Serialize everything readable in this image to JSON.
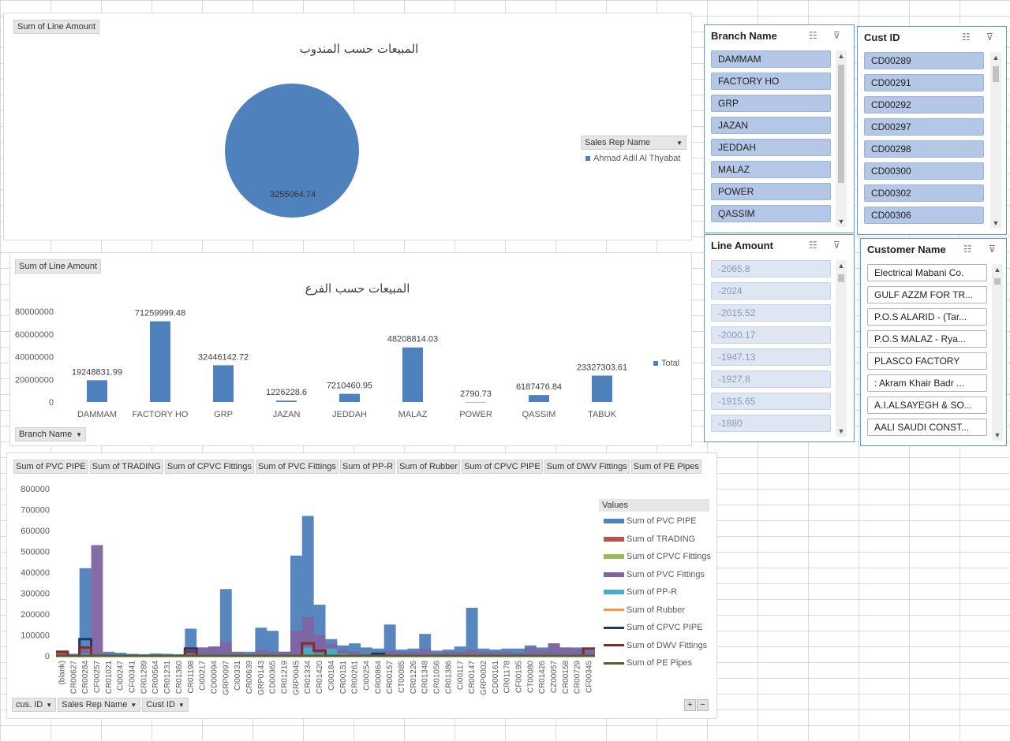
{
  "pie": {
    "field_button": "Sum of Line Amount",
    "title": "المبيعات حسب المندوب",
    "legend_dropdown": "Sales Rep  Name",
    "chart_data": {
      "type": "pie",
      "title": "المبيعات حسب المندوب",
      "slices": [
        {
          "name": "Ahmad Adil Al Thyabat",
          "value": 3255064.74,
          "label": "3255064.74"
        }
      ]
    },
    "color": "#4f81bd"
  },
  "bar": {
    "field_button": "Sum of Line Amount",
    "title": "المبيعات حسب الفرع",
    "axis_dropdown": "Branch Name",
    "legend": "Total",
    "chart_data": {
      "type": "bar",
      "title": "المبيعات حسب الفرع",
      "categories": [
        "DAMMAM",
        "FACTORY HO",
        "GRP",
        "JAZAN",
        "JEDDAH",
        "MALAZ",
        "POWER",
        "QASSIM",
        "TABUK"
      ],
      "series": [
        {
          "name": "Total",
          "values": [
            19248831.99,
            71259999.48,
            32446142.72,
            1226228.6,
            7210460.95,
            48208814.03,
            2790.73,
            6187476.84,
            23327303.61
          ]
        }
      ],
      "data_labels": [
        "19248831.99",
        "71259999.48",
        "32446142.72",
        "1226228.6",
        "7210460.95",
        "48208814.03",
        "2790.73",
        "6187476.84",
        "23327303.61"
      ],
      "y_ticks": [
        "0",
        "20000000",
        "40000000",
        "60000000",
        "80000000"
      ],
      "ylim": [
        0,
        80000000
      ]
    }
  },
  "area": {
    "field_buttons": [
      "Sum of PVC PIPE",
      "Sum of TRADING",
      "Sum of CPVC Fittings",
      "Sum of PVC Fittings",
      "Sum of PP-R",
      "Sum of Rubber",
      "Sum of CPVC PIPE",
      "Sum of DWV Fittings",
      "Sum of PE Pipes"
    ],
    "axis_dropdowns": [
      "cus. ID",
      "Sales Rep  Name",
      "Cust ID"
    ],
    "legend_title": "Values",
    "zoom_buttons": [
      "+",
      "−"
    ],
    "chart_data": {
      "type": "area",
      "y_ticks": [
        "0",
        "100000",
        "200000",
        "300000",
        "400000",
        "500000",
        "600000",
        "700000",
        "800000"
      ],
      "ylim": [
        0,
        800000
      ],
      "x_labels": [
        "(blank)",
        "CR00627",
        "CR00284",
        "CF00257",
        "CR01021",
        "CI00247",
        "CF00341",
        "CR01289",
        "CR00564",
        "CR01231",
        "CR01360",
        "CR01198",
        "CI00217",
        "CD00094",
        "GRP0097",
        "CI00331",
        "CR00639",
        "GRP0143",
        "CD00365",
        "CR01219",
        "GRP0045",
        "CR01334",
        "CR01420",
        "CI00184",
        "CR00151",
        "CR00261",
        "CI00254",
        "CR00864",
        "CR00157",
        "CT00085",
        "CR01226",
        "CR01348",
        "CR01056",
        "CR01386",
        "CI00117",
        "CR00147",
        "GRP0002",
        "CD00161",
        "CR01178",
        "CF00195",
        "CT00080",
        "CR01426",
        "CZ00057",
        "CR00158",
        "CR00729",
        "CF00345"
      ],
      "series": [
        {
          "name": "Sum of PVC PIPE",
          "color": "#4f81bd",
          "values": [
            20000,
            10000,
            420000,
            10000,
            20000,
            15000,
            10000,
            8000,
            12000,
            10000,
            8000,
            130000,
            40000,
            45000,
            320000,
            15000,
            20000,
            135000,
            120000,
            20000,
            480000,
            670000,
            245000,
            80000,
            50000,
            60000,
            40000,
            35000,
            150000,
            30000,
            35000,
            105000,
            25000,
            30000,
            45000,
            230000,
            35000,
            30000,
            35000,
            35000,
            50000,
            40000,
            60000,
            40000,
            40000,
            30000
          ]
        },
        {
          "name": "Sum of TRADING",
          "color": "#c0504d",
          "values": [
            15000,
            0,
            0,
            0,
            0,
            0,
            0,
            0,
            0,
            0,
            0,
            0,
            0,
            0,
            0,
            0,
            0,
            0,
            0,
            0,
            0,
            0,
            0,
            0,
            0,
            0,
            0,
            0,
            0,
            0,
            0,
            0,
            0,
            0,
            0,
            0,
            0,
            0,
            0,
            0,
            0,
            0,
            0,
            0,
            0,
            0
          ]
        },
        {
          "name": "Sum of CPVC Fittings",
          "color": "#9bbb59",
          "values": [
            0,
            0,
            0,
            0,
            0,
            0,
            0,
            0,
            0,
            0,
            0,
            0,
            0,
            0,
            0,
            0,
            0,
            0,
            0,
            0,
            0,
            0,
            0,
            0,
            0,
            0,
            0,
            0,
            0,
            0,
            0,
            0,
            0,
            0,
            0,
            0,
            0,
            0,
            0,
            0,
            0,
            0,
            0,
            0,
            0,
            0
          ]
        },
        {
          "name": "Sum of PVC Fittings",
          "color": "#8064a2",
          "values": [
            5000,
            0,
            40000,
            530000,
            10000,
            0,
            0,
            0,
            0,
            0,
            0,
            30000,
            40000,
            45000,
            65000,
            20000,
            10000,
            30000,
            20000,
            20000,
            120000,
            185000,
            100000,
            55000,
            30000,
            20000,
            10000,
            20000,
            25000,
            20000,
            20000,
            35000,
            15000,
            20000,
            20000,
            30000,
            20000,
            20000,
            20000,
            15000,
            40000,
            30000,
            60000,
            40000,
            35000,
            25000
          ]
        },
        {
          "name": "Sum of PP-R",
          "color": "#4bacc6",
          "values": [
            0,
            0,
            10000,
            0,
            0,
            0,
            0,
            0,
            0,
            0,
            0,
            0,
            0,
            0,
            0,
            0,
            0,
            0,
            0,
            0,
            0,
            40000,
            10000,
            35000,
            10000,
            0,
            0,
            0,
            0,
            0,
            0,
            0,
            0,
            0,
            0,
            0,
            0,
            0,
            0,
            0,
            0,
            0,
            0,
            0,
            0,
            0
          ]
        },
        {
          "name": "Sum of Rubber",
          "color": "#f79646",
          "values": [
            0,
            0,
            0,
            0,
            0,
            0,
            0,
            0,
            0,
            0,
            0,
            0,
            0,
            0,
            0,
            0,
            0,
            0,
            0,
            0,
            0,
            0,
            0,
            0,
            0,
            0,
            0,
            0,
            0,
            0,
            0,
            0,
            0,
            0,
            0,
            0,
            0,
            0,
            0,
            0,
            0,
            0,
            0,
            0,
            0,
            0
          ]
        },
        {
          "name": "Sum of CPVC PIPE",
          "color": "#1f3864",
          "values": [
            0,
            0,
            80000,
            0,
            0,
            0,
            0,
            0,
            0,
            0,
            0,
            35000,
            0,
            0,
            0,
            0,
            0,
            0,
            0,
            0,
            0,
            0,
            0,
            0,
            0,
            0,
            0,
            10000,
            0,
            0,
            0,
            0,
            0,
            0,
            0,
            0,
            0,
            0,
            0,
            0,
            0,
            0,
            0,
            0,
            0,
            0
          ]
        },
        {
          "name": "Sum of DWV Fittings",
          "color": "#7f2d2d",
          "values": [
            20000,
            0,
            40000,
            0,
            0,
            0,
            0,
            0,
            0,
            0,
            0,
            20000,
            0,
            0,
            0,
            0,
            0,
            0,
            0,
            0,
            0,
            60000,
            25000,
            0,
            0,
            0,
            0,
            0,
            0,
            0,
            0,
            0,
            0,
            0,
            0,
            0,
            0,
            0,
            0,
            0,
            0,
            0,
            0,
            0,
            0,
            35000
          ]
        },
        {
          "name": "Sum of PE Pipes",
          "color": "#4f6228",
          "values": [
            0,
            0,
            0,
            0,
            0,
            0,
            0,
            0,
            0,
            0,
            0,
            0,
            0,
            0,
            0,
            0,
            0,
            0,
            0,
            0,
            0,
            0,
            0,
            0,
            0,
            0,
            0,
            0,
            0,
            0,
            0,
            0,
            0,
            0,
            0,
            0,
            0,
            0,
            0,
            0,
            0,
            0,
            0,
            0,
            0,
            0
          ]
        }
      ]
    }
  },
  "slicers": {
    "branch": {
      "title": "Branch Name",
      "items": [
        "DAMMAM",
        "FACTORY HO",
        "GRP",
        "JAZAN",
        "JEDDAH",
        "MALAZ",
        "POWER",
        "QASSIM"
      ]
    },
    "cust_id": {
      "title": "Cust ID",
      "items": [
        "CD00289",
        "CD00291",
        "CD00292",
        "CD00297",
        "CD00298",
        "CD00300",
        "CD00302",
        "CD00306"
      ]
    },
    "line_amount": {
      "title": "Line Amount",
      "items": [
        "-2065.8",
        "-2024",
        "-2015.52",
        "-2000.17",
        "-1947.13",
        "-1927.8",
        "-1915.65",
        "-1880"
      ]
    },
    "customer_name": {
      "title": "Customer Name",
      "items": [
        "Electrical Mabani  Co.",
        "GULF AZZM FOR TR...",
        "P.O.S ALARID - (Tar...",
        "P.O.S MALAZ - Rya...",
        "PLASCO FACTORY",
        ": Akram Khair Badr ...",
        "A.I.ALSAYEGH & SO...",
        "AALI SAUDI CONST..."
      ]
    }
  },
  "icons": {
    "multiselect": "multi-select-icon",
    "clear": "clear-filter-icon",
    "dropdown": "dropdown-arrow-icon"
  }
}
